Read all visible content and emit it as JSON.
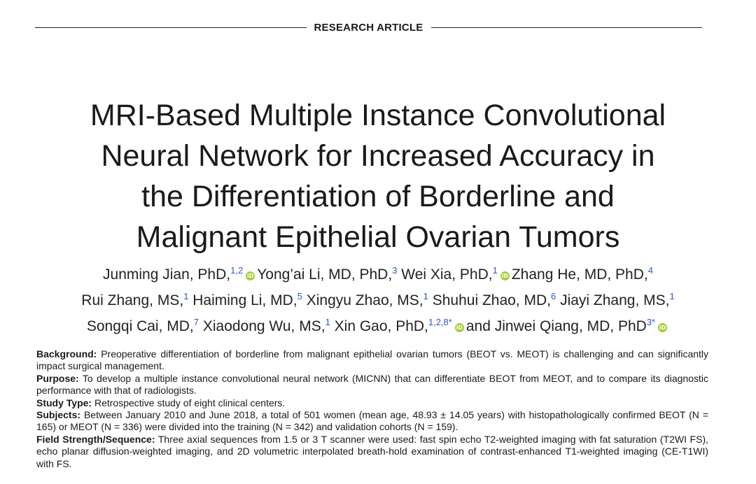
{
  "header": {
    "label": "RESEARCH ARTICLE"
  },
  "title": {
    "lines": [
      "MRI-Based Multiple Instance Convolutional",
      "Neural Network for Increased Accuracy in",
      "the Differentiation of Borderline and",
      "Malignant Epithelial Ovarian Tumors"
    ]
  },
  "authors": {
    "orcid_label": "iD",
    "conjunction": "and",
    "list": [
      {
        "name": "Junming Jian, PhD,",
        "sup": "1,2"
      },
      {
        "name": "Yong’ai Li, MD, PhD,",
        "sup": "3"
      },
      {
        "name": "Wei Xia, PhD,",
        "sup": "1"
      },
      {
        "name": "Zhang He, MD, PhD,",
        "sup": "4"
      },
      {
        "name": "Rui Zhang, MS,",
        "sup": "1"
      },
      {
        "name": "Haiming Li, MD,",
        "sup": "5"
      },
      {
        "name": "Xingyu Zhao, MS,",
        "sup": "1"
      },
      {
        "name": "Shuhui Zhao, MD,",
        "sup": "6"
      },
      {
        "name": "Jiayi Zhang, MS,",
        "sup": "1"
      },
      {
        "name": "Songqi Cai, MD,",
        "sup": "7"
      },
      {
        "name": "Xiaodong Wu, MS,",
        "sup": "1"
      },
      {
        "name": "Xin Gao, PhD,",
        "sup": "1,2,8*"
      },
      {
        "name": "Jinwei Qiang, MD, PhD",
        "sup": "3*"
      }
    ]
  },
  "abstract": [
    {
      "heading": "Background:",
      "text": "Preoperative differentiation of borderline from malignant epithelial ovarian tumors (BEOT vs. MEOT) is challenging and can significantly impact surgical management."
    },
    {
      "heading": "Purpose:",
      "text": "To develop a multiple instance convolutional neural network (MICNN) that can differentiate BEOT from MEOT, and to compare its diagnostic performance with that of radiologists."
    },
    {
      "heading": "Study Type:",
      "text": "Retrospective study of eight clinical centers."
    },
    {
      "heading": "Subjects:",
      "text": "Between January 2010 and June 2018, a total of 501 women (mean age, 48.93 ± 14.05 years) with histopathologically confirmed BEOT (N = 165) or MEOT (N = 336) were divided into the training (N = 342) and validation cohorts (N = 159)."
    },
    {
      "heading": "Field Strength/Sequence:",
      "text": "Three axial sequences from 1.5 or 3 T scanner were used: fast spin echo T2-weighted imaging with fat saturation (T2WI FS), echo planar diffusion-weighted imaging, and 2D volumetric interpolated breath-hold examination of contrast-enhanced T1-weighted imaging (CE-T1WI) with FS."
    }
  ]
}
